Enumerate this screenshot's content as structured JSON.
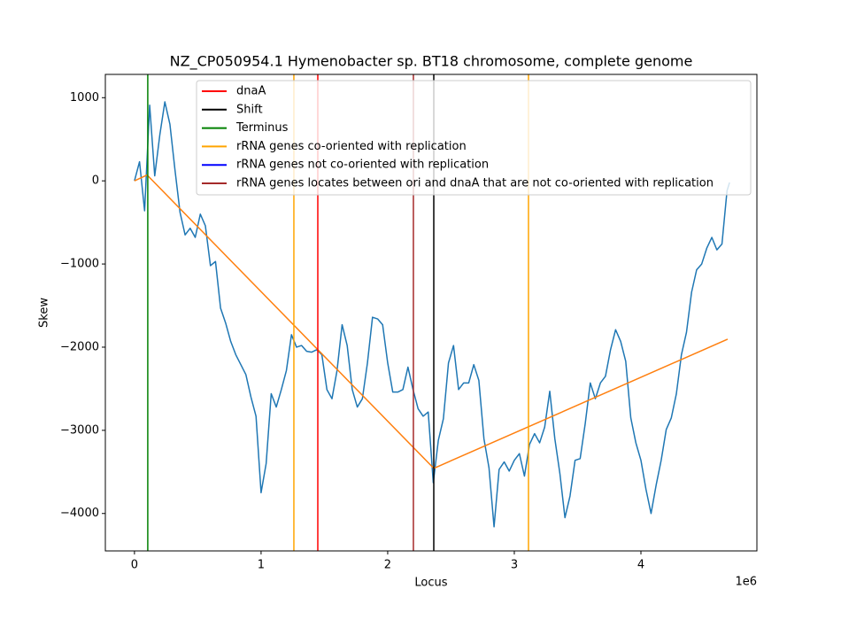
{
  "chart_data": {
    "type": "line",
    "title": "NZ_CP050954.1 Hymenobacter sp. BT18 chromosome, complete genome",
    "xlabel": "Locus",
    "ylabel": "Skew",
    "x_offset_label": "1e6",
    "xlim": [
      -230000,
      4916000
    ],
    "ylim": [
      -4450,
      1280
    ],
    "xticks": [
      0,
      {
        "value": 1000000,
        "label": "1"
      },
      {
        "value": 2000000,
        "label": "2"
      },
      {
        "value": 3000000,
        "label": "3"
      },
      {
        "value": 4000000,
        "label": "4"
      }
    ],
    "yticks": [
      {
        "value": -4000,
        "label": "−4000"
      },
      {
        "value": -3000,
        "label": "−3000"
      },
      {
        "value": -2000,
        "label": "−2000"
      },
      {
        "value": -1000,
        "label": "−1000"
      },
      0,
      1000
    ],
    "legend": true,
    "series": [
      {
        "color": "#1f77b4",
        "x": [
          0,
          40000,
          80000,
          120000,
          160000,
          200000,
          240000,
          280000,
          320000,
          360000,
          400000,
          440000,
          480000,
          520000,
          560000,
          600000,
          640000,
          680000,
          720000,
          760000,
          800000,
          840000,
          880000,
          920000,
          960000,
          1000000,
          1040000,
          1080000,
          1120000,
          1160000,
          1200000,
          1240000,
          1280000,
          1320000,
          1360000,
          1400000,
          1440000,
          1480000,
          1520000,
          1560000,
          1600000,
          1640000,
          1680000,
          1720000,
          1760000,
          1800000,
          1840000,
          1880000,
          1920000,
          1960000,
          2000000,
          2040000,
          2080000,
          2120000,
          2160000,
          2200000,
          2240000,
          2280000,
          2320000,
          2360000,
          2400000,
          2440000,
          2480000,
          2520000,
          2560000,
          2600000,
          2640000,
          2680000,
          2720000,
          2760000,
          2800000,
          2840000,
          2880000,
          2920000,
          2960000,
          3000000,
          3040000,
          3080000,
          3120000,
          3160000,
          3200000,
          3240000,
          3280000,
          3320000,
          3360000,
          3400000,
          3440000,
          3480000,
          3520000,
          3560000,
          3600000,
          3640000,
          3680000,
          3720000,
          3760000,
          3800000,
          3840000,
          3880000,
          3920000,
          3960000,
          4000000,
          4040000,
          4080000,
          4120000,
          4160000,
          4200000,
          4240000,
          4280000,
          4320000,
          4360000,
          4400000,
          4440000,
          4480000,
          4520000,
          4560000,
          4600000,
          4640000,
          4680000,
          4700000
        ],
        "values": [
          0,
          230,
          -360,
          910,
          60,
          550,
          950,
          680,
          130,
          -380,
          -650,
          -570,
          -680,
          -400,
          -540,
          -1020,
          -970,
          -1530,
          -1710,
          -1930,
          -2090,
          -2210,
          -2330,
          -2600,
          -2830,
          -3750,
          -3400,
          -2560,
          -2720,
          -2510,
          -2280,
          -1850,
          -2000,
          -1980,
          -2050,
          -2060,
          -2030,
          -2090,
          -2510,
          -2620,
          -2280,
          -1730,
          -1980,
          -2510,
          -2720,
          -2620,
          -2190,
          -1640,
          -1660,
          -1730,
          -2190,
          -2540,
          -2540,
          -2510,
          -2240,
          -2510,
          -2740,
          -2830,
          -2780,
          -3630,
          -3120,
          -2860,
          -2190,
          -1980,
          -2510,
          -2430,
          -2430,
          -2210,
          -2400,
          -3100,
          -3450,
          -4160,
          -3470,
          -3380,
          -3490,
          -3360,
          -3280,
          -3550,
          -3170,
          -3040,
          -3150,
          -2960,
          -2530,
          -3100,
          -3520,
          -4050,
          -3790,
          -3360,
          -3340,
          -2920,
          -2430,
          -2620,
          -2430,
          -2350,
          -2030,
          -1790,
          -1930,
          -2170,
          -2850,
          -3150,
          -3360,
          -3710,
          -4000,
          -3660,
          -3360,
          -2990,
          -2850,
          -2560,
          -2090,
          -1820,
          -1340,
          -1070,
          -1000,
          -810,
          -680,
          -830,
          -760,
          -120,
          -20
        ]
      },
      {
        "color": "#ff7f0e",
        "x": [
          0,
          100000,
          2364000,
          4685000
        ],
        "values": [
          0,
          70,
          -3457,
          -1904
        ]
      }
    ],
    "vlines": [
      {
        "name": "dnaA",
        "color": "#ff0000",
        "x": [
          1448000
        ]
      },
      {
        "name": "Shift",
        "color": "#000000",
        "x": [
          2364000
        ]
      },
      {
        "name": "Terminus",
        "color": "#008000",
        "x": [
          105000
        ]
      },
      {
        "name": "rRNA genes co-oriented with replication",
        "color": "#ffa500",
        "x": [
          1259000,
          3112000
        ]
      },
      {
        "name": "rRNA genes not co-oriented with replication",
        "color": "#0000ff",
        "x": []
      },
      {
        "name": "rRNA genes locates between ori and dnaA that are not co-oriented with replication",
        "color": "#a52a2a",
        "x": [
          2203000
        ]
      }
    ]
  }
}
